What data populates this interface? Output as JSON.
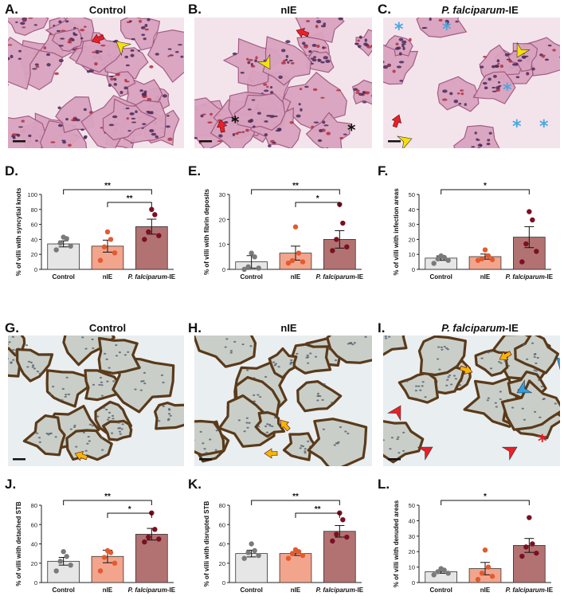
{
  "figure": {
    "panels": [
      {
        "letter": "A.",
        "title": "Control",
        "kind": "he",
        "stain": "dense"
      },
      {
        "letter": "B.",
        "title": "nIE",
        "kind": "he",
        "stain": "medium"
      },
      {
        "letter": "C.",
        "title": "P. falciparum-IE",
        "title_italic": "P. falciparum",
        "title_suffix": "-IE",
        "kind": "he",
        "stain": "sparse"
      },
      {
        "letter": "D.",
        "kind": "chart"
      },
      {
        "letter": "E.",
        "kind": "chart"
      },
      {
        "letter": "F.",
        "kind": "chart"
      },
      {
        "letter": "G.",
        "title": "Control",
        "kind": "ihc"
      },
      {
        "letter": "H.",
        "title": "nIE",
        "kind": "ihc"
      },
      {
        "letter": "I.",
        "title": "P. falciparum-IE",
        "title_italic": "P. falciparum",
        "title_suffix": "-IE",
        "kind": "ihc"
      },
      {
        "letter": "J.",
        "kind": "chart"
      },
      {
        "letter": "K.",
        "kind": "chart"
      },
      {
        "letter": "L.",
        "kind": "chart"
      }
    ],
    "colors": {
      "control_bar": "#e6e6e6",
      "control_dot": "#7a7a7a",
      "nie_bar": "#f2a58c",
      "nie_dot": "#e35a2f",
      "pf_bar": "#b27272",
      "pf_dot": "#7a1020",
      "he_bg": "#f3e4ec",
      "he_tissue": "#d9a3bf",
      "ihc_bg": "#dfe6ea",
      "ihc_border": "#5a3a1a",
      "arrow_red": "#e8202a",
      "arrow_yellow": "#f5e10a",
      "arrow_orange": "#f2b705",
      "arrow_blue": "#2aa0e8",
      "asterisk_blue": "#4aa8e0"
    },
    "icons": [
      "red-arrow-icon",
      "yellow-arrowhead-icon",
      "orange-arrow-icon",
      "blue-arrowhead-icon",
      "red-arrowhead-icon",
      "asterisk-icon",
      "scale-bar-icon"
    ]
  },
  "chart_data": [
    {
      "id": "D",
      "type": "bar",
      "categories": [
        "Control",
        "nIE",
        "P. falciparum-IE"
      ],
      "values": [
        34,
        31,
        57
      ],
      "errors": [
        4,
        8,
        10
      ],
      "points": [
        [
          26,
          31,
          35,
          41,
          43
        ],
        [
          12,
          22,
          30,
          40,
          50
        ],
        [
          40,
          45,
          50,
          73,
          80
        ]
      ],
      "ylabel": "% of villi with syncytial knots",
      "ylim": [
        0,
        100
      ],
      "yticks": [
        0,
        20,
        40,
        60,
        80,
        100
      ],
      "significance": [
        {
          "from": 0,
          "to": 2,
          "label": "**",
          "level": 0
        },
        {
          "from": 1,
          "to": 2,
          "label": "**",
          "level": 1
        }
      ]
    },
    {
      "id": "E",
      "type": "bar",
      "categories": [
        "Control",
        "nIE",
        "P. falciparum-IE"
      ],
      "values": [
        3,
        6.5,
        12
      ],
      "errors": [
        2.5,
        2.8,
        3.5
      ],
      "points": [
        [
          0,
          0.5,
          1,
          5,
          6.5
        ],
        [
          2.5,
          3,
          3.5,
          6.5,
          17
        ],
        [
          7.5,
          9,
          12,
          18.5,
          26
        ]
      ],
      "ylabel": "% of villi with fibrin deposits",
      "ylim": [
        0,
        30
      ],
      "yticks": [
        0,
        10,
        20,
        30
      ],
      "significance": [
        {
          "from": 0,
          "to": 2,
          "label": "**",
          "level": 0
        },
        {
          "from": 1,
          "to": 2,
          "label": "*",
          "level": 1
        }
      ]
    },
    {
      "id": "F",
      "type": "bar",
      "categories": [
        "Control",
        "nIE",
        "P. falciparum-IE"
      ],
      "values": [
        7.5,
        8.5,
        21.5
      ],
      "errors": [
        1.5,
        1.7,
        7
      ],
      "points": [
        [
          4,
          6,
          7,
          8,
          9
        ],
        [
          6,
          6.5,
          7,
          9,
          13
        ],
        [
          5,
          12,
          17,
          33,
          38.5
        ]
      ],
      "ylabel": "% of villi with infection areas",
      "ylim": [
        0,
        50
      ],
      "yticks": [
        0,
        10,
        20,
        30,
        40,
        50
      ],
      "significance": [
        {
          "from": 0,
          "to": 2,
          "label": "*",
          "level": 0
        }
      ]
    },
    {
      "id": "J",
      "type": "bar",
      "categories": [
        "Control",
        "nIE",
        "P. falciparum-IE"
      ],
      "values": [
        22,
        27,
        50
      ],
      "errors": [
        4,
        6.5,
        6
      ],
      "points": [
        [
          12,
          18,
          22,
          27,
          32
        ],
        [
          12,
          20,
          26,
          31,
          33
        ],
        [
          42,
          45,
          47,
          55,
          72
        ]
      ],
      "ylabel": "% of villi with detached STB",
      "ylim": [
        0,
        80
      ],
      "yticks": [
        0,
        20,
        40,
        60,
        80
      ],
      "significance": [
        {
          "from": 0,
          "to": 2,
          "label": "**",
          "level": 0
        },
        {
          "from": 1,
          "to": 2,
          "label": "*",
          "level": 1
        }
      ]
    },
    {
      "id": "K",
      "type": "bar",
      "categories": [
        "Control",
        "nIE",
        "P. falciparum-IE"
      ],
      "values": [
        30,
        30,
        53
      ],
      "errors": [
        3.5,
        2,
        6
      ],
      "points": [
        [
          25,
          28,
          31,
          33,
          40
        ],
        [
          25,
          28,
          30,
          32,
          34
        ],
        [
          43,
          47,
          50,
          65,
          72
        ]
      ],
      "ylabel": "% of villi with disrupted STB",
      "ylim": [
        0,
        80
      ],
      "yticks": [
        0,
        20,
        40,
        60,
        80
      ],
      "significance": [
        {
          "from": 0,
          "to": 2,
          "label": "**",
          "level": 0
        },
        {
          "from": 1,
          "to": 2,
          "label": "**",
          "level": 1
        }
      ]
    },
    {
      "id": "L",
      "type": "bar",
      "categories": [
        "Control",
        "nIE",
        "P. falciparum-IE"
      ],
      "values": [
        7,
        9,
        24
      ],
      "errors": [
        1,
        4,
        4.5
      ],
      "points": [
        [
          5,
          6,
          7,
          8,
          9
        ],
        [
          2,
          4,
          6,
          10,
          21
        ],
        [
          17,
          19,
          23,
          25,
          42
        ]
      ],
      "ylabel": "% of villi with denuded areas",
      "ylim": [
        0,
        50
      ],
      "yticks": [
        0,
        10,
        20,
        30,
        40,
        50
      ],
      "significance": [
        {
          "from": 0,
          "to": 2,
          "label": "*",
          "level": 0
        }
      ]
    }
  ]
}
